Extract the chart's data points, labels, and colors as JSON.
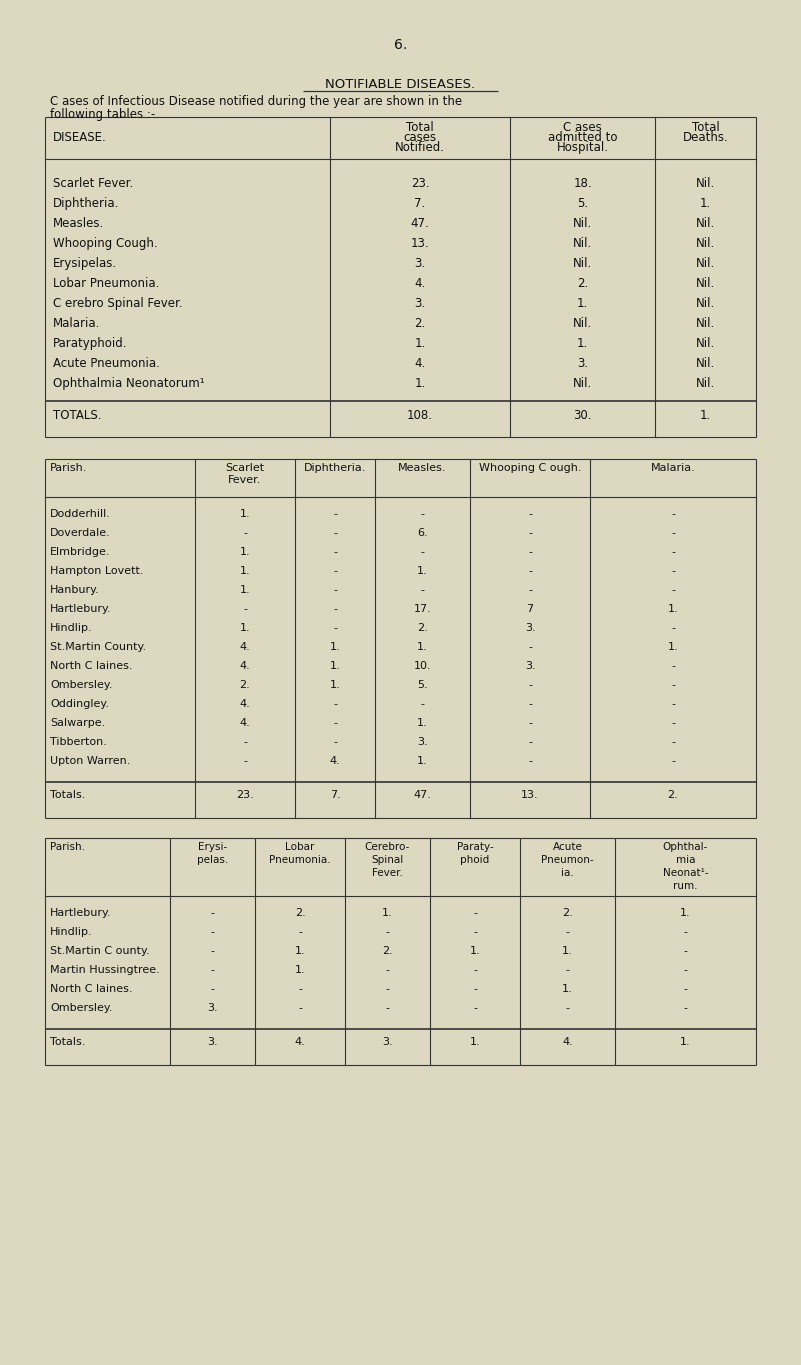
{
  "bg_color": "#ddd9c0",
  "text_color": "#111111",
  "line_color": "#333333",
  "page_number": "6.",
  "title": "NOTIFIABLE DISEASES.",
  "subtitle1": "C ases of Infectious Disease notified during the year are shown in the",
  "subtitle2": "following tables :-",
  "table1_headers_row1": [
    "",
    "Total",
    "C ases",
    "Total"
  ],
  "table1_headers_row2": [
    "DISEASE.",
    "cases",
    "admitted to",
    "Deaths."
  ],
  "table1_headers_row3": [
    "",
    "Notified.",
    "Hospital.",
    ""
  ],
  "table1_rows": [
    [
      "Scarlet Fever.",
      "23.",
      "18.",
      "Nil."
    ],
    [
      "Diphtheria.",
      "7.",
      "5.",
      "1."
    ],
    [
      "Measles.",
      "47.",
      "Nil.",
      "Nil."
    ],
    [
      "Whooping Cough.",
      "13.",
      "Nil.",
      "Nil."
    ],
    [
      "Erysipelas.",
      "3.",
      "Nil.",
      "Nil."
    ],
    [
      "Lobar Pneumonia.",
      "4.",
      "2.",
      "Nil."
    ],
    [
      "C erebro Spinal Fever.",
      "3.",
      "1.",
      "Nil."
    ],
    [
      "Malaria.",
      "2.",
      "Nil.",
      "Nil."
    ],
    [
      "Paratyphoid.",
      "1.",
      "1.",
      "Nil."
    ],
    [
      "Acute Pneumonia.",
      "4.",
      "3.",
      "Nil."
    ],
    [
      "Ophthalmia Neonatorum¹",
      "1.",
      "Nil.",
      "Nil."
    ]
  ],
  "table1_totals": [
    "TOTALS.",
    "108.",
    "30.",
    "1."
  ],
  "table2_headers": [
    "Parish.",
    "Scarlet\nFever.",
    "Diphtheria.",
    "Measles.",
    "Whooping C ough.",
    "Malaria."
  ],
  "table2_rows": [
    [
      "Dodderhill.",
      "1.",
      "-",
      "-",
      "-",
      "-"
    ],
    [
      "Doverdale.",
      "-",
      "-",
      "6.",
      "-",
      "-"
    ],
    [
      "Elmbridge.",
      "1.",
      "-",
      "-",
      "-",
      "-"
    ],
    [
      "Hampton Lovett.",
      "1.",
      "-",
      "1.",
      "-",
      "-"
    ],
    [
      "Hanbury.",
      "1.",
      "-",
      "-",
      "-",
      "-"
    ],
    [
      "Hartlebury.",
      "-",
      "-",
      "17.",
      "7",
      "1."
    ],
    [
      "Hindlip.",
      "1.",
      "-",
      "2.",
      "3.",
      "-"
    ],
    [
      "St.Martin County.",
      "4.",
      "1.",
      "1.",
      "-",
      "1."
    ],
    [
      "North C laines.",
      "4.",
      "1.",
      "10.",
      "3.",
      "-"
    ],
    [
      "Ombersley.",
      "2.",
      "1.",
      "5.",
      "-",
      "-"
    ],
    [
      "Oddingley.",
      "4.",
      "-",
      "-",
      "-",
      "-"
    ],
    [
      "Salwarpe.",
      "4.",
      "-",
      "1.",
      "-",
      "-"
    ],
    [
      "Tibberton.",
      "-",
      "-",
      "3.",
      "-",
      "-"
    ],
    [
      "Upton Warren.",
      "-",
      "4.",
      "1.",
      "-",
      "-"
    ]
  ],
  "table2_totals": [
    "Totals.",
    "23.",
    "7.",
    "47.",
    "13.",
    "2."
  ],
  "table3_headers": [
    "Parish.",
    "Erysi-\npelas.",
    "Lobar\nPneumonia.",
    "Cerebro-\nSpinal\nFever.",
    "Paraty-\nphoid",
    "Acute\nPneumon-\nia.",
    "Ophthal-\nmia\nNeonat¹-\nrum."
  ],
  "table3_rows": [
    [
      "Hartlebury.",
      "-",
      "2.",
      "1.",
      "-",
      "2.",
      "1."
    ],
    [
      "Hindlip.",
      "-",
      "-",
      "-",
      "-",
      "-",
      "-"
    ],
    [
      "St.Martin C ounty.",
      "-",
      "1.",
      "2.",
      "1.",
      "1.",
      "-"
    ],
    [
      "Martin Hussingtree.",
      "-",
      "1.",
      "-",
      "-",
      "-",
      "-"
    ],
    [
      "North C laines.",
      "-",
      "-",
      "-",
      "-",
      "1.",
      "-"
    ],
    [
      "Ombersley.",
      "3.",
      "-",
      "-",
      "-",
      "-",
      "-"
    ]
  ],
  "table3_totals": [
    "Totals.",
    "3.",
    "4.",
    "3.",
    "1.",
    "4.",
    "1."
  ]
}
